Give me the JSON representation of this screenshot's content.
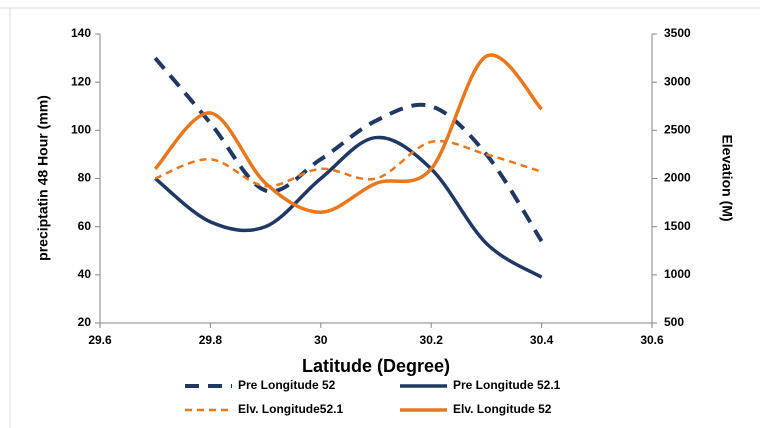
{
  "chart_data": {
    "type": "line",
    "x_label": "Latitude (Degree)",
    "y_label": "preciptatin 48 Hour (mm)",
    "y2_label": "Elevation (M)",
    "x": [
      29.7,
      29.8,
      29.9,
      30.0,
      30.1,
      30.2,
      30.3,
      30.4
    ],
    "xlim": [
      29.6,
      30.6
    ],
    "xticks": [
      29.6,
      29.8,
      30,
      30.2,
      30.4,
      30.6
    ],
    "ylim": [
      20,
      140
    ],
    "yticks": [
      20,
      40,
      60,
      80,
      100,
      120,
      140
    ],
    "y2lim": [
      500,
      3500
    ],
    "y2ticks": [
      500,
      1000,
      1500,
      2000,
      2500,
      3000,
      3500
    ],
    "smooth": true,
    "series": [
      {
        "name": "Pre Longitude 52",
        "color": "#1f3864",
        "line_style": "dashed",
        "values": [
          130,
          103,
          75,
          88,
          104,
          110,
          90,
          54
        ]
      },
      {
        "name": "Pre Longitude 52.1",
        "color": "#1f3864",
        "line_style": "solid",
        "values": [
          80,
          62,
          60,
          80,
          97,
          84,
          53,
          39
        ]
      },
      {
        "name": "Elv. Longitude52.1",
        "color": "#e8771e",
        "line_style": "dashed",
        "axis": "y2",
        "values": [
          2000,
          2200,
          1920,
          2100,
          2000,
          2380,
          2250,
          2070
        ]
      },
      {
        "name": "Elv. Longitude 52",
        "color": "#e8771e",
        "line_style": "solid",
        "axis": "y2",
        "values": [
          2100,
          2680,
          1950,
          1650,
          1950,
          2100,
          3270,
          2720
        ]
      }
    ]
  }
}
